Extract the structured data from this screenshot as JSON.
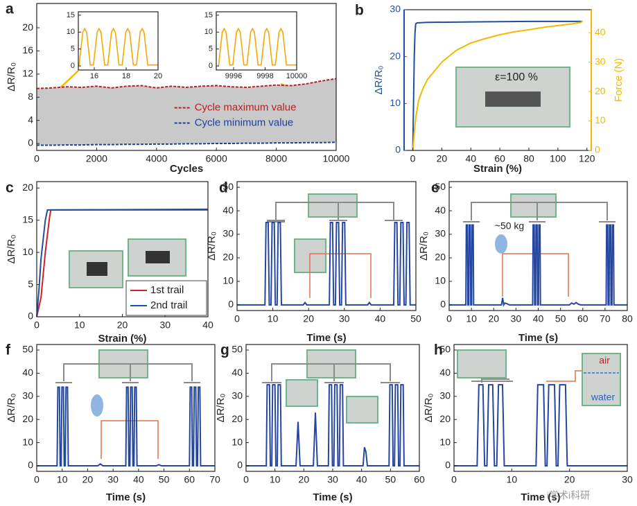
{
  "chart_data": [
    {
      "panel": "a",
      "type": "line",
      "xlabel": "Cycles",
      "ylabel": "ΔR/R₀",
      "xlim": [
        0,
        10000
      ],
      "ylim": [
        -1.2,
        24.2
      ],
      "xticks": [
        0,
        2000,
        4000,
        6000,
        8000,
        10000
      ],
      "yticks": [
        0,
        4,
        8,
        12,
        16,
        20
      ],
      "legend": "center right",
      "fill_between": true,
      "fill_color": "#c9c9c9",
      "series": [
        {
          "name": "Cycle maximum value",
          "color": "#b22222",
          "linestyle": "dashed",
          "x": [
            0,
            500,
            1000,
            1500,
            2000,
            2500,
            3000,
            3500,
            4000,
            4500,
            5000,
            5500,
            6000,
            6500,
            7000,
            7500,
            8000,
            8500,
            9000,
            9500,
            10000
          ],
          "values": [
            9.5,
            9.6,
            9.8,
            9.7,
            9.9,
            9.6,
            9.9,
            10.0,
            9.6,
            9.9,
            9.7,
            9.9,
            10.0,
            9.8,
            9.7,
            9.9,
            10.1,
            10.0,
            10.3,
            10.8,
            11.2
          ]
        },
        {
          "name": "Cycle minimum value",
          "color": "#1f3f99",
          "linestyle": "dashed",
          "x": [
            0,
            500,
            1000,
            1500,
            2000,
            2500,
            3000,
            3500,
            4000,
            4500,
            5000,
            5500,
            6000,
            6500,
            7000,
            7500,
            8000,
            8500,
            9000,
            9500,
            10000
          ],
          "values": [
            -0.3,
            -0.3,
            -0.25,
            -0.25,
            -0.2,
            -0.2,
            -0.15,
            -0.15,
            -0.1,
            -0.1,
            -0.05,
            -0.05,
            0,
            0,
            0.05,
            0.05,
            0.1,
            0.1,
            0.15,
            0.15,
            0.2
          ]
        }
      ]
    },
    {
      "type": "line",
      "xlim": [
        15,
        20
      ],
      "ylim": [
        -1.2,
        16
      ],
      "xticks": [
        16,
        18,
        20
      ],
      "yticks": [
        0,
        5,
        10,
        15
      ],
      "series": [
        {
          "color": "#f5a800",
          "x": [
            15,
            15.05,
            15.28,
            15.4,
            15.52,
            15.75,
            15.95,
            16.18,
            16.3,
            16.42,
            16.65,
            16.85,
            17.08,
            17.2,
            17.32,
            17.55,
            17.75,
            17.98,
            18.1,
            18.22,
            18.45,
            18.65,
            18.88,
            19.0,
            19.12,
            19.35,
            20
          ],
          "values": [
            0.3,
            0.3,
            10,
            11,
            10,
            0.3,
            0.3,
            10,
            11,
            10,
            0.3,
            0.3,
            10,
            11,
            10,
            0.3,
            0.3,
            10,
            11,
            10,
            0.3,
            0.3,
            10,
            11,
            10,
            0.3,
            0.3
          ]
        }
      ]
    },
    {
      "type": "line",
      "xlim": [
        9994.9,
        10000
      ],
      "ylim": [
        -1.2,
        16
      ],
      "xticks": [
        9996,
        9998,
        10000
      ],
      "yticks": [
        0,
        5,
        10,
        15
      ],
      "series": [
        {
          "color": "#f5a800",
          "x": [
            9995,
            9995.05,
            9995.28,
            9995.4,
            9995.52,
            9995.75,
            9995.95,
            9996.18,
            9996.3,
            9996.42,
            9996.65,
            9996.85,
            9997.08,
            9997.2,
            9997.32,
            9997.55,
            9997.75,
            9997.98,
            9998.1,
            9998.22,
            9998.45,
            9998.65,
            9998.88,
            9999.0,
            9999.12,
            9999.35,
            10000
          ],
          "values": [
            0.3,
            0.3,
            10,
            11,
            10,
            0.3,
            0.3,
            10,
            11,
            10,
            0.3,
            0.3,
            10,
            11,
            10,
            0.3,
            0.3,
            10,
            11,
            10,
            0.3,
            0.3,
            10,
            11,
            10,
            0.3,
            0.3
          ]
        }
      ]
    },
    {
      "panel": "b",
      "type": "line",
      "xlabel": "Strain (%)",
      "ylabel": "ΔR/R₀",
      "y2label": "Force (N)",
      "xlim": [
        -6,
        123
      ],
      "ylim": [
        0,
        30
      ],
      "y2lim": [
        0,
        47.8
      ],
      "xticks": [
        0,
        20,
        40,
        60,
        80,
        100,
        120
      ],
      "yticks": [
        0,
        10,
        20,
        30
      ],
      "y2ticks": [
        0,
        10,
        20,
        30,
        40
      ],
      "y_axis_color": "#1f4e9e",
      "y2_axis_color": "#f5b800",
      "annotations": [
        "ε=100 %"
      ],
      "series": [
        {
          "color": "#1f4e9e",
          "x": [
            0,
            0.5,
            1,
            1.5,
            2,
            3,
            10,
            40,
            80,
            117
          ],
          "values": [
            0,
            10,
            20,
            25,
            27,
            27.2,
            27.3,
            27.4,
            27.5,
            27.5
          ]
        },
        {
          "color": "#f5b800",
          "axis": "y2",
          "x": [
            0,
            1,
            2,
            4,
            7,
            10,
            15,
            20,
            30,
            40,
            50,
            60,
            70,
            80,
            90,
            100,
            110,
            116,
            117
          ],
          "values": [
            0,
            6,
            11,
            17,
            21,
            24,
            27,
            30,
            34,
            36.5,
            38,
            39.3,
            40.3,
            41,
            41.8,
            42.4,
            43,
            43.5,
            44
          ]
        }
      ]
    },
    {
      "panel": "c",
      "type": "line",
      "xlabel": "Strain (%)",
      "ylabel": "ΔR/R₀",
      "xlim": [
        0,
        40
      ],
      "ylim": [
        0,
        21
      ],
      "xticks": [
        0,
        10,
        20,
        30,
        40
      ],
      "yticks": [
        0,
        5,
        10,
        15,
        20
      ],
      "legend": "lower right",
      "series": [
        {
          "name": "1st trail",
          "color": "#d0202a",
          "x": [
            0,
            1,
            2,
            3,
            3.3,
            40
          ],
          "values": [
            0,
            3,
            10,
            15.5,
            16.6,
            16.6
          ]
        },
        {
          "name": "2nd trail",
          "color": "#1f4e9e",
          "x": [
            0,
            0.5,
            1,
            2,
            2.5,
            40
          ],
          "values": [
            0,
            4,
            9,
            15,
            16.6,
            16.7
          ]
        }
      ]
    },
    {
      "panel": "d",
      "type": "line",
      "xlabel": "Time (s)",
      "ylabel": "ΔR/R₀",
      "xlim": [
        0,
        50
      ],
      "ylim": [
        -2.4,
        52.4
      ],
      "xticks": [
        0,
        10,
        20,
        30,
        40,
        50
      ],
      "yticks": [
        0,
        10,
        20,
        30,
        40,
        50
      ],
      "series": [
        {
          "color": "#2446a0",
          "x": [
            0,
            7.8,
            8.1,
            8.7,
            9.0,
            9.5,
            9.8,
            10.4,
            10.7,
            11.2,
            11.5,
            12.1,
            12.4,
            18.5,
            19,
            19.5,
            25.8,
            26.1,
            26.7,
            27.0,
            27.5,
            27.8,
            28.4,
            28.7,
            29.2,
            29.5,
            30.1,
            30.4,
            36.5,
            37,
            37.5,
            43.8,
            44.1,
            44.7,
            45.0,
            45.5,
            45.8,
            46.4,
            46.7,
            47.2,
            47.5,
            48.1,
            48.4,
            50
          ],
          "values": [
            0,
            0,
            35,
            35,
            0,
            0,
            35,
            35,
            0,
            0,
            35,
            35,
            0,
            0,
            1,
            0,
            0,
            35,
            35,
            0,
            0,
            35,
            35,
            0,
            0,
            35,
            35,
            0,
            0,
            1,
            0,
            0,
            35,
            35,
            0,
            0,
            35,
            35,
            0,
            0,
            35,
            35,
            0,
            0
          ]
        }
      ]
    },
    {
      "panel": "e",
      "type": "line",
      "xlabel": "Time (s)",
      "ylabel": "ΔR/R₀",
      "xlim": [
        0,
        80
      ],
      "ylim": [
        -2.4,
        52.4
      ],
      "xticks": [
        0,
        10,
        20,
        30,
        40,
        50,
        60,
        70,
        80
      ],
      "yticks": [
        0,
        10,
        20,
        30,
        40,
        50
      ],
      "annotations": [
        "~50 kg"
      ],
      "series": [
        {
          "color": "#2446a0",
          "x": [
            0,
            7.5,
            7.7,
            8.2,
            8.4,
            8.8,
            9.0,
            9.5,
            9.7,
            10.1,
            10.3,
            10.8,
            11.0,
            23.5,
            24,
            24.5,
            25,
            26,
            27,
            37.5,
            37.7,
            38.2,
            38.4,
            38.8,
            39.0,
            39.5,
            39.7,
            40.1,
            40.3,
            40.8,
            41.0,
            54,
            55,
            56,
            57,
            58,
            59,
            70.5,
            70.7,
            71.2,
            71.4,
            71.8,
            72.0,
            72.5,
            72.7,
            73.1,
            73.3,
            73.8,
            74.0,
            80
          ],
          "values": [
            0,
            0,
            34,
            34,
            0,
            0,
            34,
            34,
            0,
            0,
            34,
            34,
            0,
            0,
            3,
            0,
            0.8,
            0.5,
            0,
            0,
            34,
            34,
            0,
            0,
            34,
            34,
            0,
            0,
            34,
            34,
            0,
            0,
            0.8,
            0.3,
            1,
            0.3,
            0,
            0,
            34,
            34,
            0,
            0,
            34,
            34,
            0,
            0,
            34,
            34,
            0,
            0
          ]
        }
      ]
    },
    {
      "panel": "f",
      "type": "line",
      "xlabel": "Time (s)",
      "ylabel": "ΔR/R₀",
      "xlim": [
        0,
        70
      ],
      "ylim": [
        -2.4,
        52.4
      ],
      "xticks": [
        0,
        10,
        20,
        30,
        40,
        50,
        60,
        70
      ],
      "yticks": [
        0,
        10,
        20,
        30,
        40,
        50
      ],
      "series": [
        {
          "color": "#2446a0",
          "x": [
            0,
            8,
            8.3,
            8.9,
            9.2,
            9.6,
            9.9,
            10.5,
            10.8,
            11.2,
            11.5,
            12.1,
            12.4,
            24,
            25,
            26,
            35,
            35.3,
            35.9,
            36.2,
            36.6,
            36.9,
            37.5,
            37.8,
            38.2,
            38.5,
            39.1,
            39.4,
            47,
            48,
            49,
            60,
            60.3,
            60.9,
            61.2,
            61.6,
            61.9,
            62.5,
            62.8,
            63.2,
            63.5,
            64.1,
            64.4,
            70
          ],
          "values": [
            0,
            0,
            34,
            34,
            0,
            0,
            34,
            34,
            0,
            0,
            34,
            34,
            0,
            0,
            0.8,
            0,
            0,
            34,
            34,
            0,
            0,
            34,
            34,
            0,
            0,
            34,
            34,
            0,
            0,
            0.5,
            0,
            0,
            34,
            34,
            0,
            0,
            34,
            34,
            0,
            0,
            34,
            34,
            0,
            0
          ]
        }
      ]
    },
    {
      "panel": "g",
      "type": "line",
      "xlabel": "Time (s)",
      "ylabel": "ΔR/R₀",
      "xlim": [
        0,
        60
      ],
      "ylim": [
        -2.4,
        52.4
      ],
      "xticks": [
        0,
        10,
        20,
        30,
        40,
        50,
        60
      ],
      "yticks": [
        0,
        10,
        20,
        30,
        40,
        50
      ],
      "series": [
        {
          "color": "#2446a0",
          "x": [
            0,
            7,
            7.3,
            8.1,
            8.4,
            8.9,
            9.2,
            10,
            10.3,
            10.8,
            11.1,
            11.9,
            12.2,
            17.3,
            18,
            18.7,
            23.3,
            24,
            24.7,
            28.5,
            28.8,
            29.6,
            29.9,
            30.4,
            30.7,
            31.5,
            31.8,
            32.3,
            32.6,
            33.4,
            33.7,
            40.5,
            41,
            41.5,
            42,
            49.5,
            49.8,
            50.6,
            50.9,
            51.4,
            51.7,
            52.5,
            52.8,
            53.3,
            53.6,
            54.4,
            54.7,
            60
          ],
          "values": [
            0,
            0,
            35,
            35,
            0,
            0,
            35,
            35,
            0,
            0,
            35,
            35,
            0,
            0,
            19,
            0,
            0,
            23,
            0,
            0,
            35,
            35,
            0,
            0,
            35,
            35,
            0,
            0,
            35,
            35,
            0,
            0,
            8,
            6,
            0,
            0,
            35,
            35,
            0,
            0,
            35,
            35,
            0,
            0,
            35,
            35,
            0,
            0
          ]
        }
      ]
    },
    {
      "panel": "h",
      "type": "line",
      "xlabel": "Time (s)",
      "ylabel": "ΔR/R₀",
      "xlim": [
        0,
        30
      ],
      "ylim": [
        -2.4,
        52.4
      ],
      "xticks": [
        0,
        10,
        20,
        30
      ],
      "yticks": [
        0,
        10,
        20,
        30,
        40,
        50
      ],
      "annotations": [
        "air",
        "water",
        "i学术i科研"
      ],
      "series": [
        {
          "color": "#2446a0",
          "x": [
            0,
            4,
            4.3,
            5.0,
            5.3,
            5.7,
            6.0,
            6.7,
            7.0,
            7.4,
            7.7,
            8.4,
            8.7,
            14.2,
            14.5,
            15.5,
            15.8,
            16.1,
            16.4,
            17.4,
            17.7,
            18.0,
            18.3,
            19.3,
            19.6,
            30
          ],
          "values": [
            0,
            0,
            35,
            35,
            0,
            0,
            35,
            35,
            0,
            0,
            35,
            35,
            0,
            0,
            35,
            35,
            0,
            0,
            35,
            35,
            0,
            0,
            35,
            35,
            0,
            0
          ]
        }
      ]
    }
  ]
}
